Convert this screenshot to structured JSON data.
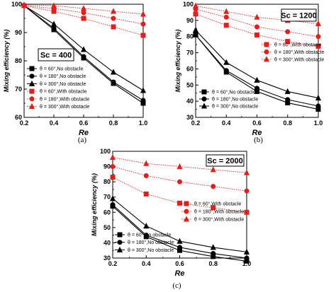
{
  "colors": {
    "no_obstacle": "#000000",
    "with_obstacle": "#e0201c"
  },
  "chart_data": [
    {
      "type": "line",
      "panel_label": "(a)",
      "annotation": "Sc = 400",
      "xlabel": "Re",
      "ylabel": "Mixing efficiency (%)",
      "xlim": [
        0.2,
        1.0
      ],
      "ylim": [
        60,
        100
      ],
      "xticks": [
        "0.2",
        "0.4",
        "0.6",
        "0.8",
        "1.0"
      ],
      "yticks": [
        "60",
        "70",
        "80",
        "90",
        "100"
      ],
      "legend_position": "lower-left",
      "x": [
        0.2,
        0.4,
        0.6,
        0.8,
        1.0
      ],
      "series": [
        {
          "name": "θ = 60°,No obstacle",
          "marker": "square",
          "style": "solid",
          "color": "#000000",
          "values": [
            99.5,
            91,
            81,
            72,
            65
          ]
        },
        {
          "name": "θ = 180°,No obstacle",
          "marker": "circle",
          "style": "solid",
          "color": "#000000",
          "values": [
            99.5,
            91.5,
            81.5,
            72.5,
            66
          ]
        },
        {
          "name": "θ = 300°,No obstacle",
          "marker": "triangle",
          "style": "solid",
          "color": "#000000",
          "values": [
            99.5,
            93,
            84,
            76,
            69.5
          ]
        },
        {
          "name": "θ = 60°,With obstacle",
          "marker": "square",
          "style": "dotted",
          "color": "#e0201c",
          "values": [
            99.5,
            97.5,
            95,
            92,
            89
          ]
        },
        {
          "name": "θ = 180°,With obstacle",
          "marker": "circle",
          "style": "dotted",
          "color": "#e0201c",
          "values": [
            99.5,
            98.5,
            97,
            95,
            93
          ]
        },
        {
          "name": "θ = 300°,With obstacle",
          "marker": "triangle",
          "style": "dotted",
          "color": "#e0201c",
          "values": [
            99.8,
            99.5,
            98.5,
            97.5,
            96.5
          ]
        }
      ]
    },
    {
      "type": "line",
      "panel_label": "(b)",
      "annotation": "Sc = 1200",
      "xlabel": "Re",
      "ylabel": "Mixing efficiency (%)",
      "xlim": [
        0.2,
        1.0
      ],
      "ylim": [
        30,
        100
      ],
      "xticks": [
        "0.2",
        "0.4",
        "0.6",
        "0.8",
        "1.0"
      ],
      "yticks": [
        "30",
        "40",
        "50",
        "60",
        "70",
        "80",
        "90",
        "100"
      ],
      "legend_position": "bottom-right",
      "x": [
        0.2,
        0.4,
        0.6,
        0.8,
        1.0
      ],
      "series": [
        {
          "name": "θ = 60°,With obstacle",
          "marker": "square",
          "style": "dotted",
          "color": "#e0201c",
          "values": [
            94,
            87,
            81,
            77,
            74
          ]
        },
        {
          "name": "θ = 180°,With obstacle",
          "marker": "circle",
          "style": "dotted",
          "color": "#e0201c",
          "values": [
            97,
            92,
            86,
            83,
            80
          ]
        },
        {
          "name": "θ = 300°,With obstacle",
          "marker": "triangle",
          "style": "dotted",
          "color": "#e0201c",
          "values": [
            99,
            95.5,
            92,
            90,
            88
          ]
        },
        {
          "name": "θ = 60°,No obstacle",
          "marker": "square",
          "style": "solid",
          "color": "#000000",
          "values": [
            81,
            58,
            46,
            39,
            35
          ]
        },
        {
          "name": "θ = 180°,No obstacle",
          "marker": "circle",
          "style": "solid",
          "color": "#000000",
          "values": [
            81,
            59,
            48,
            41,
            37
          ]
        },
        {
          "name": "θ = 300°,No obstacle",
          "marker": "triangle",
          "style": "solid",
          "color": "#000000",
          "values": [
            84,
            64,
            53,
            46,
            42
          ]
        }
      ]
    },
    {
      "type": "line",
      "panel_label": "(c)",
      "annotation": "Sc = 2000",
      "xlabel": "Re",
      "ylabel": "Mixing efficiency (%)",
      "xlim": [
        0.2,
        1.0
      ],
      "ylim": [
        30,
        100
      ],
      "xticks": [
        "0.2",
        "0.4",
        "0.6",
        "0.8",
        "1.0"
      ],
      "yticks": [
        "30",
        "40",
        "50",
        "60",
        "70",
        "80",
        "90",
        "100"
      ],
      "legend_position": "right",
      "x": [
        0.2,
        0.4,
        0.6,
        0.8,
        1.0
      ],
      "series": [
        {
          "name": "θ = 60°,With obstacle",
          "marker": "square",
          "style": "dotted",
          "color": "#e0201c",
          "values": [
            83,
            72,
            66,
            63,
            60
          ]
        },
        {
          "name": "θ = 180°,With obstacle",
          "marker": "circle",
          "style": "dotted",
          "color": "#e0201c",
          "values": [
            90,
            84,
            80,
            77,
            74
          ]
        },
        {
          "name": "θ = 300°,With obstacle",
          "marker": "triangle",
          "style": "dotted",
          "color": "#e0201c",
          "values": [
            96,
            92,
            90,
            88,
            86
          ]
        },
        {
          "name": "θ = 60°,No obstacle",
          "marker": "square",
          "style": "solid",
          "color": "#000000",
          "values": [
            64,
            44,
            35,
            31,
            28
          ]
        },
        {
          "name": "θ = 180°,No obstacle",
          "marker": "circle",
          "style": "solid",
          "color": "#000000",
          "values": [
            65,
            45,
            37,
            33,
            30
          ]
        },
        {
          "name": "θ = 300°,No obstacle",
          "marker": "triangle",
          "style": "solid",
          "color": "#000000",
          "values": [
            69,
            51,
            41,
            37,
            34
          ]
        }
      ]
    }
  ]
}
